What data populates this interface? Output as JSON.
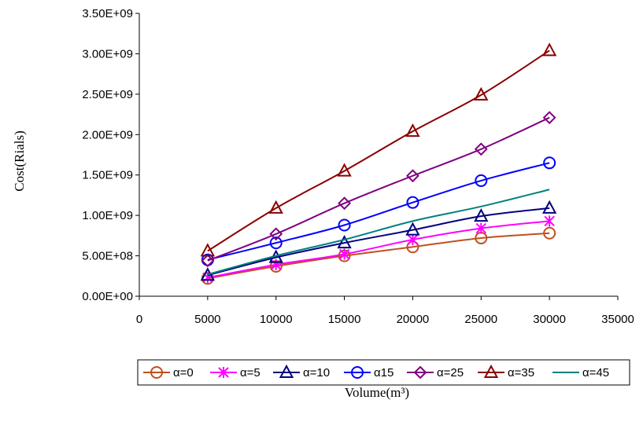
{
  "chart_data": {
    "type": "line",
    "xlabel": "Volume(m³)",
    "ylabel": "Cost(Rials)",
    "xlim": [
      0,
      35000
    ],
    "ylim": [
      0,
      3500000000
    ],
    "x_ticks": [
      0,
      5000,
      10000,
      15000,
      20000,
      25000,
      30000,
      35000
    ],
    "x_tick_labels": [
      "0",
      "5000",
      "10000",
      "15000",
      "20000",
      "25000",
      "30000",
      "35000"
    ],
    "y_ticks": [
      0,
      500000000,
      1000000000,
      1500000000,
      2000000000,
      2500000000,
      3000000000,
      3500000000
    ],
    "y_tick_labels": [
      "0.00E+00",
      "5.00E+08",
      "1.00E+09",
      "1.50E+09",
      "2.00E+09",
      "2.50E+09",
      "3.00E+09",
      "3.50E+09"
    ],
    "grid": false,
    "legend_position": "bottom",
    "x": [
      5000,
      10000,
      15000,
      20000,
      25000,
      30000
    ],
    "series": [
      {
        "name": "α=0",
        "color": "#C0501E",
        "marker": "circle",
        "values": [
          220000000,
          370000000,
          500000000,
          610000000,
          720000000,
          780000000
        ]
      },
      {
        "name": "α=5",
        "color": "#FF00FF",
        "marker": "star",
        "values": [
          230000000,
          390000000,
          520000000,
          700000000,
          840000000,
          930000000
        ]
      },
      {
        "name": "α=10",
        "color": "#000080",
        "marker": "triangle",
        "values": [
          260000000,
          480000000,
          660000000,
          820000000,
          990000000,
          1090000000
        ]
      },
      {
        "name": "α15",
        "color": "#0000FF",
        "marker": "circle",
        "values": [
          450000000,
          660000000,
          880000000,
          1160000000,
          1430000000,
          1650000000
        ]
      },
      {
        "name": "α=25",
        "color": "#800080",
        "marker": "diamond",
        "values": [
          440000000,
          770000000,
          1150000000,
          1490000000,
          1820000000,
          2210000000
        ]
      },
      {
        "name": "α=35",
        "color": "#8B0000",
        "marker": "triangle",
        "values": [
          560000000,
          1090000000,
          1550000000,
          2040000000,
          2490000000,
          3040000000
        ]
      },
      {
        "name": "α=45",
        "color": "#008080",
        "marker": "none",
        "values": [
          270000000,
          500000000,
          700000000,
          930000000,
          1110000000,
          1320000000
        ]
      }
    ]
  }
}
